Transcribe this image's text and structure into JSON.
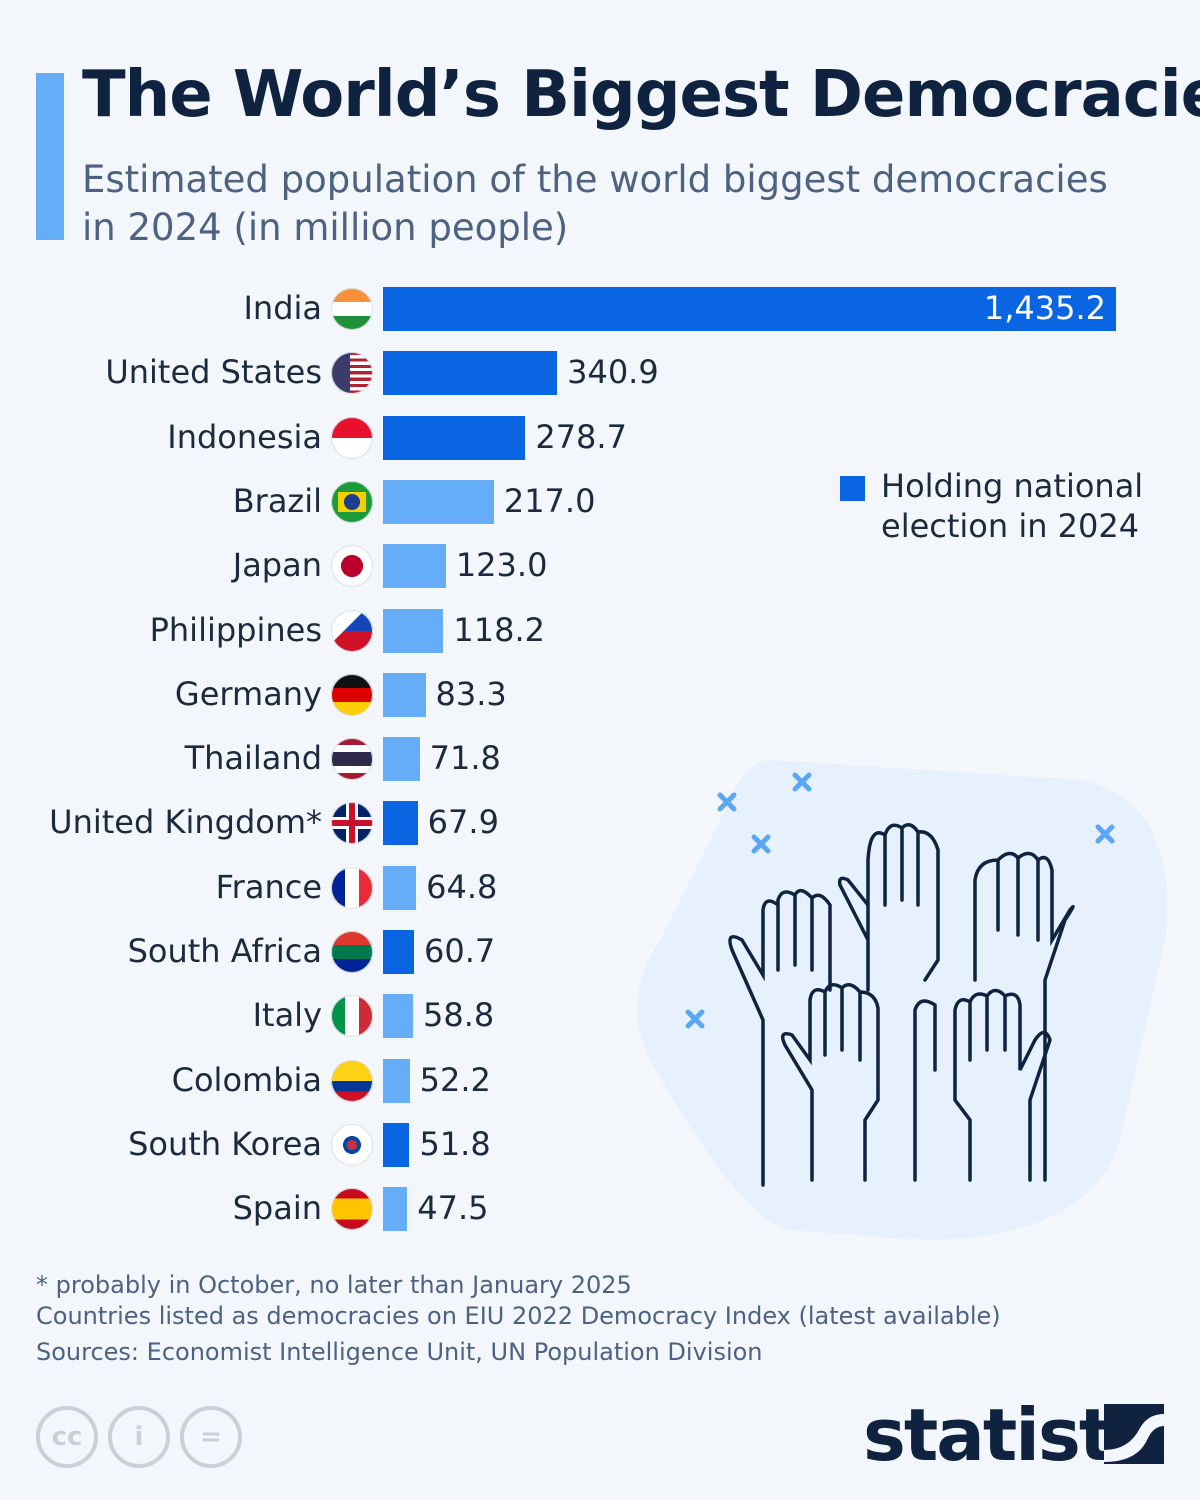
{
  "title": "The World’s Biggest Democracies",
  "subtitle": "Estimated population of the world biggest democracies in 2024 (in million people)",
  "colors": {
    "election": "#0a65e3",
    "other": "#66adf7",
    "text": "#1b2a3e",
    "title": "#0f2340"
  },
  "chart_data": {
    "type": "bar",
    "orientation": "horizontal",
    "title": "The World’s Biggest Democracies",
    "unit": "million people",
    "categories": [
      "India",
      "United States",
      "Indonesia",
      "Brazil",
      "Japan",
      "Philippines",
      "Germany",
      "Thailand",
      "United Kingdom*",
      "France",
      "South Africa",
      "Italy",
      "Colombia",
      "South Korea",
      "Spain"
    ],
    "values": [
      1435.2,
      340.9,
      278.7,
      217.0,
      123.0,
      118.2,
      83.3,
      71.8,
      67.9,
      64.8,
      60.7,
      58.8,
      52.2,
      51.8,
      47.5
    ],
    "labels": [
      "1,435.2",
      "340.9",
      "278.7",
      "217.0",
      "123.0",
      "118.2",
      "83.3",
      "71.8",
      "67.9",
      "64.8",
      "60.7",
      "58.8",
      "52.2",
      "51.8",
      "47.5"
    ],
    "election_2024": [
      true,
      true,
      true,
      false,
      false,
      false,
      false,
      false,
      true,
      false,
      true,
      false,
      false,
      true,
      false
    ],
    "xlim": [
      0,
      1435.2
    ],
    "grid": false,
    "legend": {
      "label": "Holding national election in 2024",
      "placement": "right"
    }
  },
  "notes": [
    "* probably in October, no later than January 2025",
    "Countries listed as democracies on EIU 2022 Democracy Index (latest available)"
  ],
  "source": "Sources: Economist Intelligence Unit, UN Population Division",
  "license_icons": [
    "cc-icon",
    "attribution-icon",
    "no-derivatives-icon"
  ],
  "license_glyphs": [
    "cc",
    "i",
    "="
  ],
  "brand": "statista"
}
